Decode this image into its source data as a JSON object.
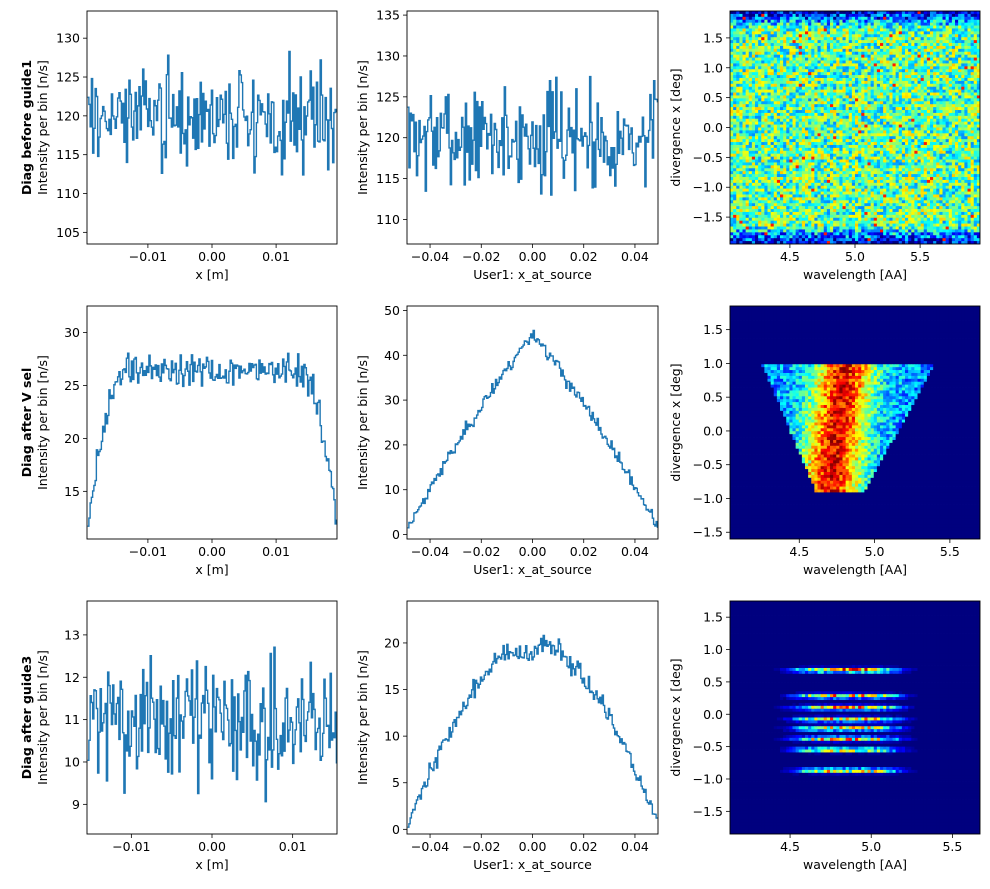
{
  "figure": {
    "row_titles": [
      "Diag before guide1",
      "Diag after V sel",
      "Diag after guide3"
    ],
    "colors": {
      "line": "#1f77b4",
      "colormap": [
        "#00007f",
        "#0000ff",
        "#007fff",
        "#00ffff",
        "#7fff7f",
        "#ffff00",
        "#ff7f00",
        "#ff0000",
        "#7f0000"
      ]
    }
  },
  "chart_data": [
    {
      "id": "r0c0",
      "type": "line",
      "xlabel": "x [m]",
      "ylabel": "Intensity per bin [n/s]",
      "xlim": [
        -0.0195,
        0.0195
      ],
      "ylim": [
        103.5,
        133.5
      ],
      "xticks": [
        -0.01,
        0.0,
        0.01
      ],
      "xtick_labels": [
        "−0.01",
        "0.00",
        "0.01"
      ],
      "yticks": [
        105,
        110,
        115,
        120,
        125,
        130
      ],
      "ytick_labels": [
        "105",
        "110",
        "115",
        "120",
        "125",
        "130"
      ],
      "series": [
        {
          "profile": "flat",
          "mean": 120,
          "noise": 4.5,
          "points": 200,
          "seed": 3
        }
      ]
    },
    {
      "id": "r0c1",
      "type": "line",
      "xlabel": "User1: x_at_source",
      "ylabel": "Intensity per bin [n/s]",
      "xlim": [
        -0.049,
        0.049
      ],
      "ylim": [
        107,
        135.5
      ],
      "xticks": [
        -0.04,
        -0.02,
        0.0,
        0.02,
        0.04
      ],
      "xtick_labels": [
        "−0.04",
        "−0.02",
        "0.00",
        "0.02",
        "0.04"
      ],
      "yticks": [
        110,
        115,
        120,
        125,
        130,
        135
      ],
      "ytick_labels": [
        "110",
        "115",
        "120",
        "125",
        "130",
        "135"
      ],
      "series": [
        {
          "profile": "flat",
          "mean": 120,
          "noise": 4.5,
          "points": 200,
          "seed": 7
        }
      ]
    },
    {
      "id": "r0c2",
      "type": "heatmap",
      "xlabel": "wavelength [AA]",
      "ylabel": "divergence x [deg]",
      "xlim": [
        4.04,
        5.96
      ],
      "ylim": [
        -1.95,
        1.95
      ],
      "xticks": [
        4.5,
        5.0,
        5.5
      ],
      "xtick_labels": [
        "4.5",
        "5.0",
        "5.5"
      ],
      "yticks": [
        -1.5,
        -1.0,
        -0.5,
        0.0,
        0.5,
        1.0,
        1.5
      ],
      "ytick_labels": [
        "−1.5",
        "−1.0",
        "−0.5",
        "0.0",
        "0.5",
        "1.0",
        "1.5"
      ],
      "grid": {
        "nx": 80,
        "ny": 80,
        "pattern": "uniform",
        "seed": 11
      }
    },
    {
      "id": "r1c0",
      "type": "line",
      "xlabel": "x [m]",
      "ylabel": "Intensity per bin [n/s]",
      "xlim": [
        -0.0195,
        0.0195
      ],
      "ylim": [
        10.5,
        32.5
      ],
      "xticks": [
        -0.01,
        0.0,
        0.01
      ],
      "xtick_labels": [
        "−0.01",
        "0.00",
        "0.01"
      ],
      "yticks": [
        15,
        20,
        25,
        30
      ],
      "ytick_labels": [
        "15",
        "20",
        "25",
        "30"
      ],
      "series": [
        {
          "profile": "plateau",
          "mean": 26.5,
          "edge_low": 12,
          "ramp": 0.0055,
          "noise": 1.2,
          "points": 200,
          "seed": 19
        }
      ]
    },
    {
      "id": "r1c1",
      "type": "line",
      "xlabel": "User1: x_at_source",
      "ylabel": "Intensity per bin [n/s]",
      "xlim": [
        -0.049,
        0.049
      ],
      "ylim": [
        -1,
        51
      ],
      "xticks": [
        -0.04,
        -0.02,
        0.0,
        0.02,
        0.04
      ],
      "xtick_labels": [
        "−0.04",
        "−0.02",
        "0.00",
        "0.02",
        "0.04"
      ],
      "yticks": [
        0,
        10,
        20,
        30,
        40,
        50
      ],
      "ytick_labels": [
        "0",
        "10",
        "20",
        "30",
        "40",
        "50"
      ],
      "series": [
        {
          "profile": "tent",
          "peak": 45,
          "base": 1.5,
          "noise": 1.2,
          "points": 200,
          "seed": 23
        }
      ]
    },
    {
      "id": "r1c2",
      "type": "heatmap",
      "xlabel": "wavelength [AA]",
      "ylabel": "divergence x [deg]",
      "xlim": [
        4.04,
        5.7
      ],
      "ylim": [
        -1.6,
        1.85
      ],
      "xticks": [
        4.5,
        5.0,
        5.5
      ],
      "xtick_labels": [
        "4.5",
        "5.0",
        "5.5"
      ],
      "yticks": [
        -1.5,
        -1.0,
        -0.5,
        0.0,
        0.5,
        1.0,
        1.5
      ],
      "ytick_labels": [
        "−1.5",
        "−1.0",
        "−0.5",
        "0.0",
        "0.5",
        "1.0",
        "1.5"
      ],
      "grid": {
        "nx": 80,
        "ny": 80,
        "pattern": "parallelogram",
        "seed": 29
      }
    },
    {
      "id": "r2c0",
      "type": "line",
      "xlabel": "x [m]",
      "ylabel": "Intensity per bin [n/s]",
      "xlim": [
        -0.0155,
        0.0155
      ],
      "ylim": [
        8.3,
        13.8
      ],
      "xticks": [
        -0.01,
        0.0,
        0.01
      ],
      "xtick_labels": [
        "−0.01",
        "0.00",
        "0.01"
      ],
      "yticks": [
        9,
        10,
        11,
        12,
        13
      ],
      "ytick_labels": [
        "9",
        "10",
        "11",
        "12",
        "13"
      ],
      "series": [
        {
          "profile": "flat",
          "mean": 11,
          "noise": 1.0,
          "points": 200,
          "seed": 31
        }
      ]
    },
    {
      "id": "r2c1",
      "type": "line",
      "xlabel": "User1: x_at_source",
      "ylabel": "Intensity per bin [n/s]",
      "xlim": [
        -0.049,
        0.049
      ],
      "ylim": [
        -0.5,
        24.5
      ],
      "xticks": [
        -0.04,
        -0.02,
        0.0,
        0.02,
        0.04
      ],
      "xtick_labels": [
        "−0.04",
        "−0.02",
        "0.00",
        "0.02",
        "0.04"
      ],
      "yticks": [
        0,
        5,
        10,
        15,
        20
      ],
      "ytick_labels": [
        "0",
        "5",
        "10",
        "15",
        "20"
      ],
      "series": [
        {
          "profile": "double",
          "peak": 21,
          "dip": 18.5,
          "base": 0.6,
          "noise": 0.8,
          "points": 200,
          "seed": 37
        }
      ]
    },
    {
      "id": "r2c2",
      "type": "heatmap",
      "xlabel": "wavelength [AA]",
      "ylabel": "divergence x [deg]",
      "xlim": [
        4.13,
        5.67
      ],
      "ylim": [
        -1.85,
        1.75
      ],
      "xticks": [
        4.5,
        5.0,
        5.5
      ],
      "xtick_labels": [
        "4.5",
        "5.0",
        "5.5"
      ],
      "yticks": [
        -1.5,
        -1.0,
        -0.5,
        0.0,
        0.5,
        1.0,
        1.5
      ],
      "ytick_labels": [
        "−1.5",
        "−1.0",
        "−0.5",
        "0.0",
        "0.5",
        "1.0",
        "1.5"
      ],
      "grid": {
        "nx": 80,
        "ny": 80,
        "pattern": "bands",
        "band_centers": [
          0.68,
          0.28,
          0.1,
          -0.08,
          -0.22,
          -0.38,
          -0.55,
          -0.87
        ],
        "seed": 41
      }
    }
  ]
}
